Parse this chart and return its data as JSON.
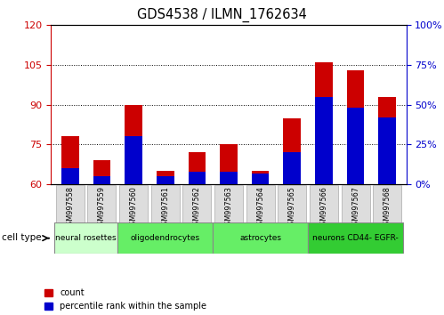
{
  "title": "GDS4538 / ILMN_1762634",
  "samples": [
    "GSM997558",
    "GSM997559",
    "GSM997560",
    "GSM997561",
    "GSM997562",
    "GSM997563",
    "GSM997564",
    "GSM997565",
    "GSM997566",
    "GSM997567",
    "GSM997568"
  ],
  "count_values": [
    78,
    69,
    90,
    65,
    72,
    75,
    65,
    85,
    106,
    103,
    93
  ],
  "percentile_values": [
    10,
    5,
    30,
    5,
    8,
    8,
    7,
    20,
    55,
    48,
    42
  ],
  "ylim_left": [
    60,
    120
  ],
  "ylim_right": [
    0,
    100
  ],
  "yticks_left": [
    60,
    75,
    90,
    105,
    120
  ],
  "yticks_right": [
    0,
    25,
    50,
    75,
    100
  ],
  "cell_types": [
    {
      "label": "neural rosettes",
      "start": 0,
      "end": 2,
      "color": "#ccffcc"
    },
    {
      "label": "oligodendrocytes",
      "start": 2,
      "end": 5,
      "color": "#66ee66"
    },
    {
      "label": "astrocytes",
      "start": 5,
      "end": 8,
      "color": "#66ee66"
    },
    {
      "label": "neurons CD44- EGFR-",
      "start": 8,
      "end": 11,
      "color": "#33cc33"
    }
  ],
  "bar_width": 0.55,
  "count_color": "#cc0000",
  "percentile_color": "#0000cc",
  "axis_left_color": "#cc0000",
  "axis_right_color": "#0000cc",
  "legend_count": "count",
  "legend_percentile": "percentile rank within the sample"
}
